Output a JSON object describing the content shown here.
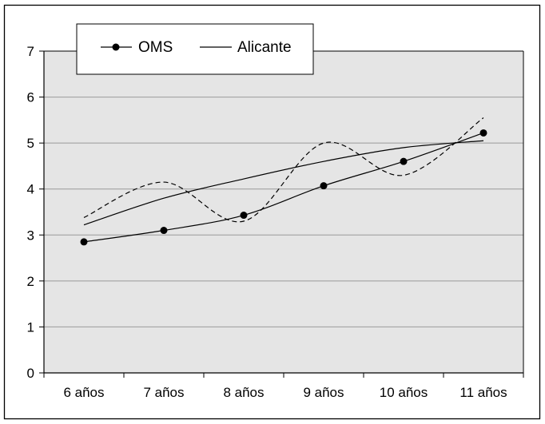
{
  "chart_data": {
    "type": "line",
    "title": "",
    "xlabel": "",
    "ylabel": "",
    "categories": [
      "6 años",
      "7 años",
      "8 años",
      "9 años",
      "10 años",
      "11 años"
    ],
    "ylim": [
      0,
      7
    ],
    "yticks": [
      "0",
      "1",
      "2",
      "3",
      "4",
      "5",
      "6",
      "7"
    ],
    "grid": true,
    "legend_position": "top-left",
    "series": [
      {
        "name": "OMS",
        "style": "solid line with markers",
        "values": [
          2.85,
          3.1,
          3.43,
          4.07,
          4.6,
          5.22
        ]
      },
      {
        "name": "Alicante",
        "style": "solid line",
        "values": [
          3.22,
          3.8,
          4.22,
          4.6,
          4.9,
          5.05
        ]
      },
      {
        "name": "",
        "style": "dashed line",
        "values": [
          3.38,
          4.15,
          3.3,
          5.0,
          4.3,
          5.55
        ]
      }
    ],
    "colors": {
      "plot_background": "#e5e5e5",
      "lines": "#000000",
      "gridlines": "#9a9a9a"
    }
  }
}
